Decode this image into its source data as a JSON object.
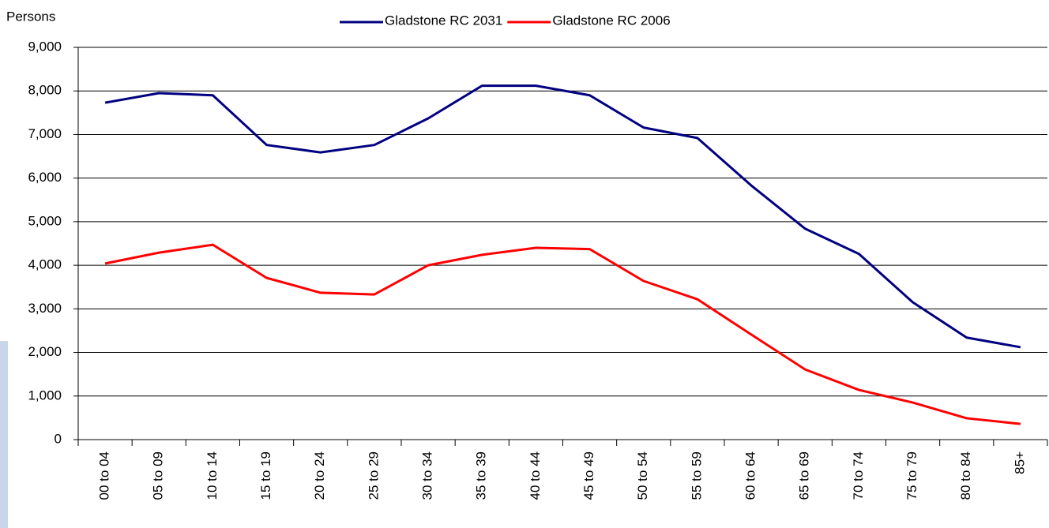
{
  "chart_data": {
    "type": "line",
    "y_axis_label": "Persons",
    "categories": [
      "00 to 04",
      "05 to 09",
      "10 to 14",
      "15 to 19",
      "20 to 24",
      "25 to 29",
      "30 to 34",
      "35 to 39",
      "40 to 44",
      "45 to 49",
      "50 to 54",
      "55 to 59",
      "60 to 64",
      "65 to 69",
      "70 to 74",
      "75 to 79",
      "80 to 84",
      "85+"
    ],
    "series": [
      {
        "name": "Gladstone RC 2031",
        "color": "#000080",
        "values": [
          7730,
          7950,
          7900,
          6760,
          6590,
          6760,
          7370,
          8120,
          8120,
          7900,
          7160,
          6920,
          5830,
          4840,
          4260,
          3150,
          2340,
          2120
        ]
      },
      {
        "name": "Gladstone RC 2006",
        "color": "#ff0000",
        "values": [
          4040,
          4290,
          4470,
          3710,
          3370,
          3330,
          4000,
          4240,
          4400,
          4370,
          3640,
          3220,
          2410,
          1610,
          1140,
          850,
          490,
          360
        ]
      }
    ],
    "ylim": [
      0,
      9000
    ],
    "yticks": [
      0,
      {
        "value": 1000,
        "label": "1,000"
      },
      {
        "value": 2000,
        "label": "2,000"
      },
      {
        "value": 3000,
        "label": "3,000"
      },
      {
        "value": 4000,
        "label": "4,000"
      },
      {
        "value": 5000,
        "label": "5,000"
      },
      {
        "value": 6000,
        "label": "6,000"
      },
      {
        "value": 7000,
        "label": "7,000"
      },
      {
        "value": 8000,
        "label": "8,000"
      },
      {
        "value": 9000,
        "label": "9,000"
      }
    ],
    "grid": true,
    "legend": "top"
  }
}
